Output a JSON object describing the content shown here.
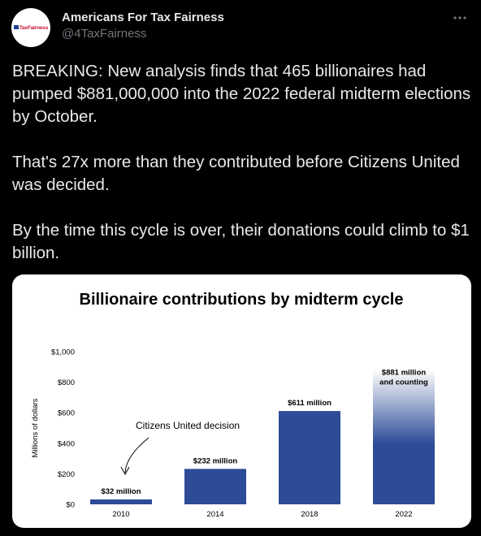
{
  "tweet": {
    "author_name": "Americans For Tax Fairness",
    "handle": "@4TaxFairness",
    "avatar_text": "TaxFairness",
    "text": "BREAKING: New analysis finds that 465 billionaires had pumped $881,000,000 into the 2022 federal midterm elections by October.\n\nThat's 27x more than they contributed before Citizens United was decided.\n\nBy the time this cycle is over, their donations could climb to $1 billion."
  },
  "icons": {
    "more": "more-horizontal-icon"
  },
  "colors": {
    "bar": "#2d4b97",
    "bar_fade": "#ffffff",
    "background": "#000000",
    "text": "#e7e9ea",
    "muted": "#71767b"
  },
  "chart_data": {
    "type": "bar",
    "title": "Billionaire contributions by midterm cycle",
    "ylabel": "Millions of dollars",
    "xlabel": "",
    "categories": [
      "2010",
      "2014",
      "2018",
      "2022"
    ],
    "values": [
      32,
      232,
      611,
      881
    ],
    "data_labels": [
      "$32 million",
      "$232 million",
      "$611 million",
      "$881 million\nand counting"
    ],
    "yticks": [
      0,
      200,
      400,
      600,
      800,
      1000
    ],
    "ytick_labels": [
      "$0",
      "$200",
      "$400",
      "$600",
      "$800",
      "$1,000"
    ],
    "ylim": [
      0,
      1000
    ],
    "grid": false,
    "annotation": "Citizens United decision"
  }
}
